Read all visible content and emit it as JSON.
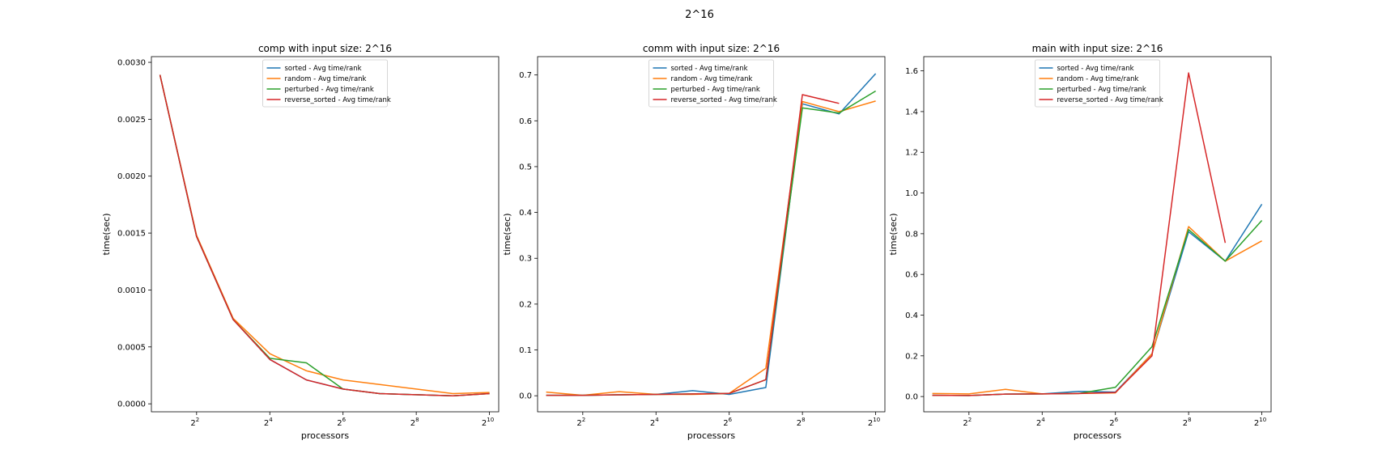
{
  "figure": {
    "suptitle": "2^16"
  },
  "colors": {
    "sorted": "#1f77b4",
    "random": "#ff7f0e",
    "perturbed": "#2ca02c",
    "reverse_sorted": "#d62728"
  },
  "chart_data": [
    {
      "type": "line",
      "title": "comp with input size: 2^16",
      "xlabel": "processors",
      "ylabel": "time(sec)",
      "x": [
        2,
        4,
        8,
        16,
        32,
        64,
        128,
        256,
        512,
        1024
      ],
      "xscale": "log2",
      "xlim": [
        1.7,
        1220
      ],
      "ylim": [
        -7e-05,
        0.00305
      ],
      "xticks": [
        {
          "v": 4,
          "b": "2",
          "e": "2"
        },
        {
          "v": 16,
          "b": "2",
          "e": "4"
        },
        {
          "v": 64,
          "b": "2",
          "e": "6"
        },
        {
          "v": 256,
          "b": "2",
          "e": "8"
        },
        {
          "v": 1024,
          "b": "2",
          "e": "10"
        }
      ],
      "yticks": [
        {
          "v": 0.0,
          "label": "0.0000"
        },
        {
          "v": 0.0005,
          "label": "0.0005"
        },
        {
          "v": 0.001,
          "label": "0.0010"
        },
        {
          "v": 0.0015,
          "label": "0.0015"
        },
        {
          "v": 0.002,
          "label": "0.0020"
        },
        {
          "v": 0.0025,
          "label": "0.0025"
        },
        {
          "v": 0.003,
          "label": "0.0030"
        }
      ],
      "legend": "upper center",
      "grid": false,
      "series": [
        {
          "name": "sorted - Avg time/rank",
          "key": "sorted",
          "values": [
            0.00289,
            0.00147,
            0.00074,
            0.00039,
            0.00021,
            0.00013,
            9e-05,
            8e-05,
            7e-05,
            9e-05
          ]
        },
        {
          "name": "random - Avg time/rank",
          "key": "random",
          "values": [
            0.00289,
            0.00148,
            0.00075,
            0.00044,
            0.00029,
            0.00021,
            0.00017,
            0.00013,
            9e-05,
            0.0001
          ]
        },
        {
          "name": "perturbed - Avg time/rank",
          "key": "perturbed",
          "values": [
            0.00289,
            0.00147,
            0.00074,
            0.0004,
            0.00036,
            0.00013,
            9e-05,
            8e-05,
            7e-05,
            9e-05
          ]
        },
        {
          "name": "reverse_sorted - Avg time/rank",
          "key": "reverse_sorted",
          "values": [
            0.00289,
            0.00147,
            0.00074,
            0.00039,
            0.00021,
            0.00013,
            9e-05,
            8e-05,
            7e-05,
            9e-05
          ]
        }
      ]
    },
    {
      "type": "line",
      "title": "comm with input size: 2^16",
      "xlabel": "processors",
      "ylabel": "time(sec)",
      "x": [
        2,
        4,
        8,
        16,
        32,
        64,
        128,
        256,
        512,
        1024
      ],
      "xscale": "log2",
      "xlim": [
        1.7,
        1220
      ],
      "ylim": [
        -0.035,
        0.74
      ],
      "xticks": [
        {
          "v": 4,
          "b": "2",
          "e": "2"
        },
        {
          "v": 16,
          "b": "2",
          "e": "4"
        },
        {
          "v": 64,
          "b": "2",
          "e": "6"
        },
        {
          "v": 256,
          "b": "2",
          "e": "8"
        },
        {
          "v": 1024,
          "b": "2",
          "e": "10"
        }
      ],
      "yticks": [
        {
          "v": 0.0,
          "label": "0.0"
        },
        {
          "v": 0.1,
          "label": "0.1"
        },
        {
          "v": 0.2,
          "label": "0.2"
        },
        {
          "v": 0.3,
          "label": "0.3"
        },
        {
          "v": 0.4,
          "label": "0.4"
        },
        {
          "v": 0.5,
          "label": "0.5"
        },
        {
          "v": 0.6,
          "label": "0.6"
        },
        {
          "v": 0.7,
          "label": "0.7"
        }
      ],
      "legend": "upper center",
      "grid": false,
      "series": [
        {
          "name": "sorted - Avg time/rank",
          "key": "sorted",
          "values": [
            0.001,
            0.001,
            0.002,
            0.003,
            0.011,
            0.003,
            0.018,
            0.637,
            0.615,
            0.703
          ]
        },
        {
          "name": "random - Avg time/rank",
          "key": "random",
          "values": [
            0.008,
            0.001,
            0.009,
            0.003,
            0.003,
            0.005,
            0.06,
            0.642,
            0.62,
            0.643
          ]
        },
        {
          "name": "perturbed - Avg time/rank",
          "key": "perturbed",
          "values": [
            0.001,
            0.001,
            0.002,
            0.003,
            0.004,
            0.005,
            0.035,
            0.628,
            0.617,
            0.665
          ]
        },
        {
          "name": "reverse_sorted - Avg time/rank",
          "key": "reverse_sorted",
          "values": [
            0.001,
            0.001,
            0.002,
            0.003,
            0.004,
            0.005,
            0.035,
            0.657,
            0.638,
            null
          ]
        }
      ]
    },
    {
      "type": "line",
      "title": "main with input size: 2^16",
      "xlabel": "processors",
      "ylabel": "time(sec)",
      "x": [
        2,
        4,
        8,
        16,
        32,
        64,
        128,
        256,
        512,
        1024
      ],
      "xscale": "log2",
      "xlim": [
        1.7,
        1220
      ],
      "ylim": [
        -0.075,
        1.67
      ],
      "xticks": [
        {
          "v": 4,
          "b": "2",
          "e": "2"
        },
        {
          "v": 16,
          "b": "2",
          "e": "4"
        },
        {
          "v": 64,
          "b": "2",
          "e": "6"
        },
        {
          "v": 256,
          "b": "2",
          "e": "8"
        },
        {
          "v": 1024,
          "b": "2",
          "e": "10"
        }
      ],
      "yticks": [
        {
          "v": 0.0,
          "label": "0.0"
        },
        {
          "v": 0.2,
          "label": "0.2"
        },
        {
          "v": 0.4,
          "label": "0.4"
        },
        {
          "v": 0.6,
          "label": "0.6"
        },
        {
          "v": 0.8,
          "label": "0.8"
        },
        {
          "v": 1.0,
          "label": "1.0"
        },
        {
          "v": 1.2,
          "label": "1.2"
        },
        {
          "v": 1.4,
          "label": "1.4"
        },
        {
          "v": 1.6,
          "label": "1.6"
        }
      ],
      "legend": "upper center",
      "grid": false,
      "series": [
        {
          "name": "sorted - Avg time/rank",
          "key": "sorted",
          "values": [
            0.006,
            0.005,
            0.012,
            0.013,
            0.025,
            0.022,
            0.21,
            0.81,
            0.665,
            0.945
          ]
        },
        {
          "name": "random - Avg time/rank",
          "key": "random",
          "values": [
            0.015,
            0.013,
            0.035,
            0.013,
            0.015,
            0.018,
            0.21,
            0.835,
            0.665,
            0.765
          ]
        },
        {
          "name": "perturbed - Avg time/rank",
          "key": "perturbed",
          "values": [
            0.006,
            0.005,
            0.012,
            0.013,
            0.015,
            0.045,
            0.245,
            0.82,
            0.665,
            0.865
          ]
        },
        {
          "name": "reverse_sorted - Avg time/rank",
          "key": "reverse_sorted",
          "values": [
            0.006,
            0.005,
            0.012,
            0.013,
            0.015,
            0.02,
            0.2,
            1.59,
            0.755,
            null
          ]
        }
      ]
    }
  ]
}
